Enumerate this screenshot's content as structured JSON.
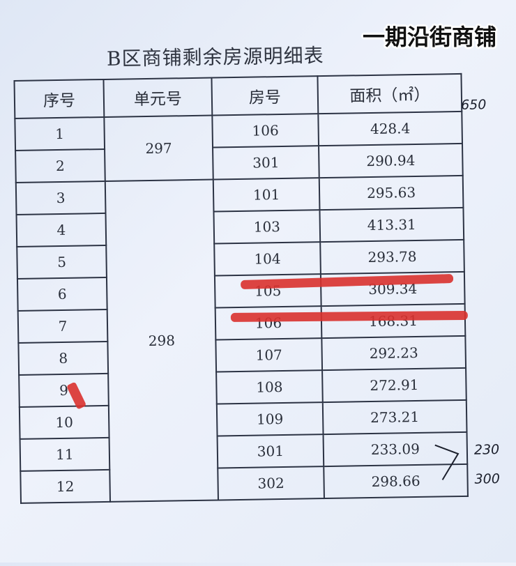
{
  "overlay_caption": "一期沿街商铺",
  "title": "B区商铺剩余房源明细表",
  "columns": [
    "序号",
    "单元号",
    "房号",
    "面积（㎡）"
  ],
  "units": [
    {
      "unit": "297",
      "rows": [
        {
          "no": "1",
          "room": "106",
          "area": "428.4"
        },
        {
          "no": "2",
          "room": "301",
          "area": "290.94"
        }
      ]
    },
    {
      "unit": "298",
      "rows": [
        {
          "no": "3",
          "room": "101",
          "area": "295.63"
        },
        {
          "no": "4",
          "room": "103",
          "area": "413.31"
        },
        {
          "no": "5",
          "room": "104",
          "area": "293.78"
        },
        {
          "no": "6",
          "room": "105",
          "area": "309.34",
          "struck": true
        },
        {
          "no": "7",
          "room": "106",
          "area": "168.31",
          "struck": true
        },
        {
          "no": "8",
          "room": "107",
          "area": "292.23"
        },
        {
          "no": "9",
          "room": "108",
          "area": "272.91",
          "marked": true
        },
        {
          "no": "10",
          "room": "109",
          "area": "273.21"
        },
        {
          "no": "11",
          "room": "301",
          "area": "233.09"
        },
        {
          "no": "12",
          "room": "302",
          "area": "298.66"
        }
      ]
    }
  ],
  "handwritten_notes": [
    "650",
    "230",
    "300"
  ],
  "colors": {
    "strike": "#d9312e",
    "paper": "#e8eef8",
    "ink": "#2c3344"
  }
}
